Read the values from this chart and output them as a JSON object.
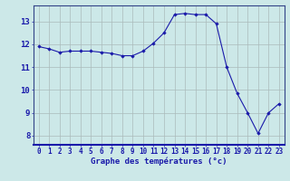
{
  "x": [
    0,
    1,
    2,
    3,
    4,
    5,
    6,
    7,
    8,
    9,
    10,
    11,
    12,
    13,
    14,
    15,
    16,
    17,
    18,
    19,
    20,
    21,
    22,
    23
  ],
  "y": [
    11.9,
    11.8,
    11.65,
    11.7,
    11.7,
    11.7,
    11.65,
    11.6,
    11.5,
    11.5,
    11.7,
    12.05,
    12.5,
    13.3,
    13.35,
    13.3,
    13.3,
    12.9,
    11.0,
    9.85,
    9.0,
    8.1,
    9.0,
    9.4
  ],
  "line_color": "#1a1aaa",
  "marker": "D",
  "marker_size": 1.8,
  "bg_color": "#cce8e8",
  "grid_color": "#aabbbb",
  "xlabel": "Graphe des températures (°c)",
  "xlabel_color": "#1a1aaa",
  "xlabel_fontsize": 6.5,
  "ylabel_ticks": [
    8,
    9,
    10,
    11,
    12,
    13
  ],
  "xtick_labels": [
    "0",
    "1",
    "2",
    "3",
    "4",
    "5",
    "6",
    "7",
    "8",
    "9",
    "10",
    "11",
    "12",
    "13",
    "14",
    "15",
    "16",
    "17",
    "18",
    "19",
    "20",
    "21",
    "22",
    "23"
  ],
  "ylim": [
    7.6,
    13.7
  ],
  "xlim": [
    -0.5,
    23.5
  ],
  "tick_color": "#1a1aaa",
  "ytick_fontsize": 6.5,
  "xtick_fontsize": 5.5,
  "axis_color": "#334488",
  "linewidth": 0.8
}
